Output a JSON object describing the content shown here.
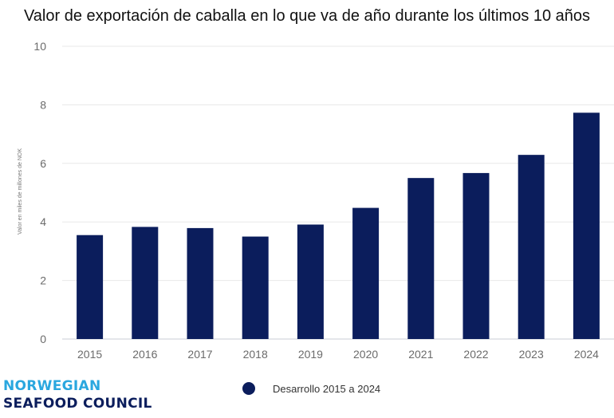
{
  "chart_data": {
    "type": "bar",
    "title": "Valor de exportación de caballa en lo que va de año durante los últimos 10 años",
    "ylabel": "Valor en miles de millones de NOK",
    "xlabel": "",
    "categories": [
      "2015",
      "2016",
      "2017",
      "2018",
      "2019",
      "2020",
      "2021",
      "2022",
      "2023",
      "2024"
    ],
    "series": [
      {
        "name": "Desarrollo 2015 a 2024",
        "color": "#0b1d5c",
        "values": [
          3.55,
          3.83,
          3.79,
          3.5,
          3.91,
          4.48,
          5.5,
          5.67,
          6.29,
          7.73
        ]
      }
    ],
    "ylim": [
      0,
      10
    ],
    "yticks": [
      0,
      2,
      4,
      6,
      8,
      10
    ],
    "grid": true,
    "legend_position": "bottom-center"
  },
  "logo": {
    "line1": "NORWEGIAN",
    "line2": "SEAFOOD COUNCIL"
  }
}
